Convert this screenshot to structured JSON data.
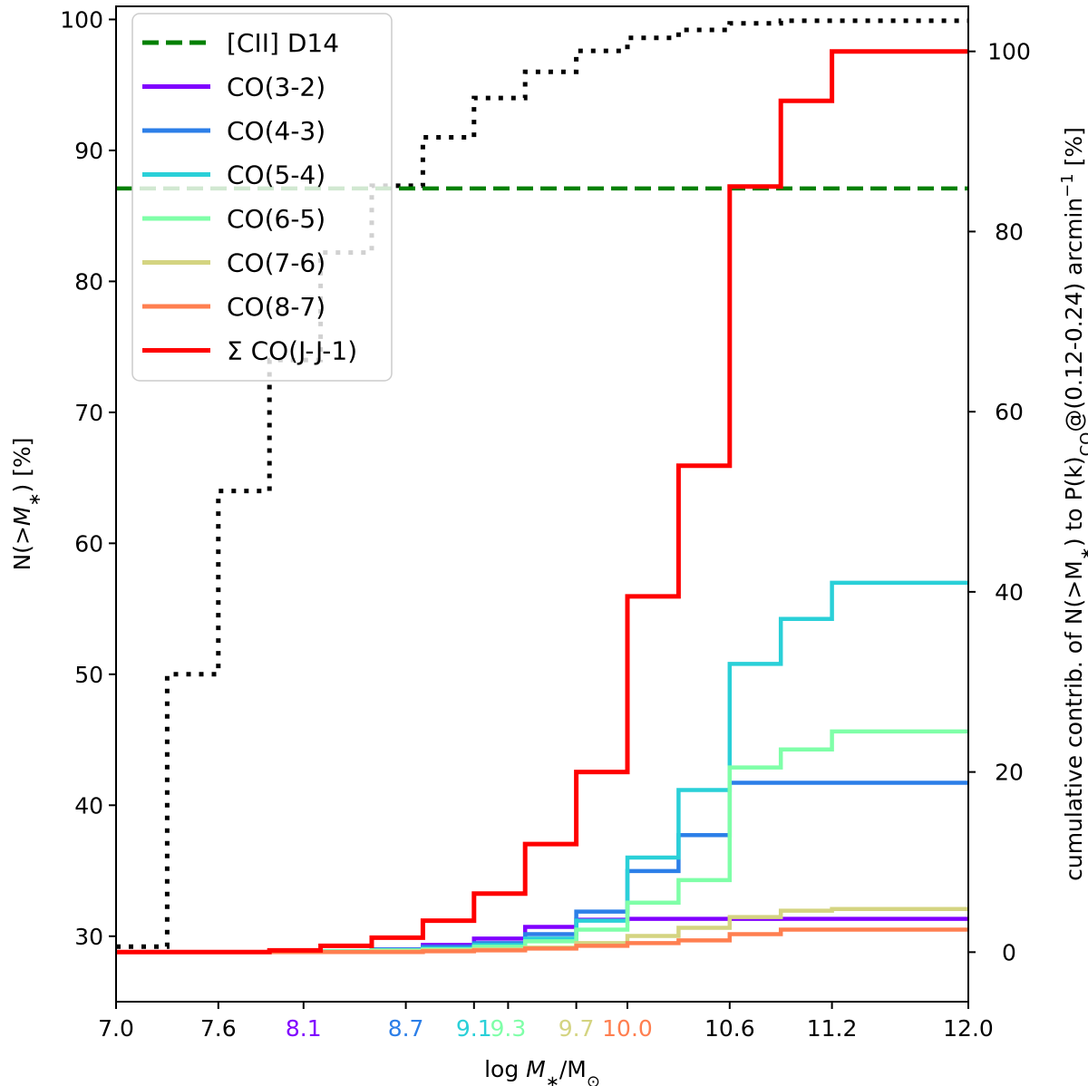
{
  "chart_data": {
    "type": "line",
    "title": "",
    "xlabel": "log M_*/M_⊙",
    "ylabel_left": "N(>M_*) [%]",
    "ylabel_right": "cumulative contrib. of N(>M_*) to P(k)_CO@(0.12-0.24) arcmin^-1 [%]",
    "xlim": [
      7.0,
      12.0
    ],
    "ylim_left": [
      25,
      101
    ],
    "ylim_right": [
      -5.5,
      105
    ],
    "grid": false,
    "legend_position": "top-left",
    "x_ticks": [
      {
        "label": "7.0",
        "value": 7.0,
        "color": "#000000"
      },
      {
        "label": "7.6",
        "value": 7.6,
        "color": "#000000"
      },
      {
        "label": "8.1",
        "value": 8.1,
        "color": "#8000ff"
      },
      {
        "label": "8.7",
        "value": 8.7,
        "color": "#2c7fe8"
      },
      {
        "label": "9.1",
        "value": 9.1,
        "color": "#2ad0d8"
      },
      {
        "label": "9.3",
        "value": 9.3,
        "color": "#7fffa8"
      },
      {
        "label": "9.7",
        "value": 9.7,
        "color": "#d4d481"
      },
      {
        "label": "10.0",
        "value": 10.0,
        "color": "#ff7f50"
      },
      {
        "label": "10.6",
        "value": 10.6,
        "color": "#000000"
      },
      {
        "label": "11.2",
        "value": 11.2,
        "color": "#000000"
      },
      {
        "label": "12.0",
        "value": 12.0,
        "color": "#000000"
      }
    ],
    "y_ticks_left": [
      30,
      40,
      50,
      60,
      70,
      80,
      90,
      100
    ],
    "y_ticks_right": [
      0,
      20,
      40,
      60,
      80,
      100
    ],
    "step_x": [
      7.0,
      7.3,
      7.6,
      7.9,
      8.2,
      8.5,
      8.8,
      9.1,
      9.4,
      9.7,
      10.0,
      10.3,
      10.6,
      10.9,
      11.2,
      12.0
    ],
    "number_counts": {
      "axis": "left",
      "color": "#000000",
      "style": "dotted",
      "values": [
        29.2,
        50.0,
        64.0,
        74.0,
        82.2,
        87.3,
        91.0,
        94.0,
        96.0,
        97.6,
        98.6,
        99.2,
        99.7,
        99.9,
        99.9,
        99.9
      ]
    },
    "series": [
      {
        "name": "[CII] D14",
        "axis": "left",
        "color": "#008000",
        "style": "dashed",
        "x": [
          7.0,
          12.0
        ],
        "values": [
          87.1,
          87.1
        ]
      },
      {
        "name": "CO(3-2)",
        "axis": "right",
        "color": "#8000ff",
        "style": "solid",
        "values": [
          0,
          0,
          0,
          0,
          0.1,
          0.3,
          0.8,
          1.5,
          2.8,
          3.6,
          3.7,
          3.7,
          3.7,
          3.7,
          3.7,
          3.7
        ]
      },
      {
        "name": "CO(4-3)",
        "axis": "right",
        "color": "#2c7fe8",
        "style": "solid",
        "values": [
          0,
          0,
          0,
          0,
          0.1,
          0.3,
          0.6,
          1.0,
          2.0,
          4.5,
          9.0,
          13.0,
          18.8,
          18.8,
          18.8,
          18.8
        ]
      },
      {
        "name": "CO(5-4)",
        "axis": "right",
        "color": "#2ad0d8",
        "style": "solid",
        "values": [
          0,
          0,
          0,
          0,
          0.1,
          0.2,
          0.4,
          0.8,
          1.5,
          3.5,
          10.5,
          18.0,
          32.0,
          37.0,
          41.0,
          41.0
        ]
      },
      {
        "name": "CO(6-5)",
        "axis": "right",
        "color": "#7fffa8",
        "style": "solid",
        "values": [
          0,
          0,
          0,
          0,
          0.1,
          0.2,
          0.3,
          0.6,
          1.2,
          2.5,
          5.5,
          8.0,
          20.5,
          22.5,
          24.5,
          24.5
        ]
      },
      {
        "name": "CO(7-6)",
        "axis": "right",
        "color": "#d4d481",
        "style": "solid",
        "values": [
          0,
          0,
          0,
          0,
          0,
          0.1,
          0.2,
          0.3,
          0.5,
          1.0,
          1.8,
          2.7,
          3.9,
          4.6,
          4.8,
          4.8
        ]
      },
      {
        "name": "CO(8-7)",
        "axis": "right",
        "color": "#ff7f50",
        "style": "solid",
        "values": [
          0,
          0,
          0,
          0,
          0,
          0,
          0.1,
          0.2,
          0.4,
          0.7,
          1.0,
          1.3,
          2.0,
          2.5,
          2.5,
          2.5
        ]
      },
      {
        "name": "Σ CO(J-J-1)",
        "axis": "right",
        "color": "#ff0000",
        "style": "solid",
        "values": [
          0,
          0,
          0,
          0.2,
          0.7,
          1.6,
          3.5,
          6.5,
          12.0,
          20.0,
          39.5,
          54.0,
          85.0,
          94.5,
          100.0,
          100.0
        ]
      }
    ]
  }
}
